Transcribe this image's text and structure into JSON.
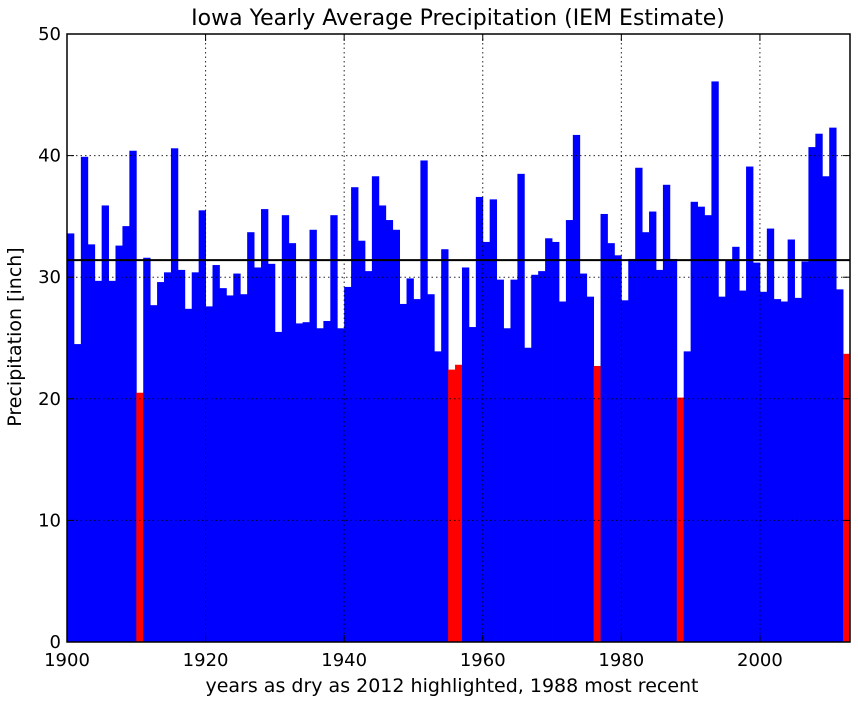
{
  "chart_data": {
    "type": "bar",
    "title": "Iowa Yearly Average Precipitation (IEM Estimate)",
    "xlabel": "years as dry as 2012 highlighted, 1988 most recent",
    "ylabel": "Precipitation [inch]",
    "xlim": [
      1900,
      2013
    ],
    "ylim": [
      0,
      50
    ],
    "xticks": [
      1900,
      1920,
      1940,
      1960,
      1980,
      2000
    ],
    "yticks": [
      0,
      10,
      20,
      30,
      40,
      50
    ],
    "grid": true,
    "average_line": 31.4,
    "colors": {
      "normal": "#0000ff",
      "highlight": "#ff0000",
      "average_line": "#000000",
      "grid": "#000000"
    },
    "highlighted_years": [
      1910,
      1955,
      1956,
      1976,
      1988,
      2012
    ],
    "x": [
      1900,
      1901,
      1902,
      1903,
      1904,
      1905,
      1906,
      1907,
      1908,
      1909,
      1910,
      1911,
      1912,
      1913,
      1914,
      1915,
      1916,
      1917,
      1918,
      1919,
      1920,
      1921,
      1922,
      1923,
      1924,
      1925,
      1926,
      1927,
      1928,
      1929,
      1930,
      1931,
      1932,
      1933,
      1934,
      1935,
      1936,
      1937,
      1938,
      1939,
      1940,
      1941,
      1942,
      1943,
      1944,
      1945,
      1946,
      1947,
      1948,
      1949,
      1950,
      1951,
      1952,
      1953,
      1954,
      1955,
      1956,
      1957,
      1958,
      1959,
      1960,
      1961,
      1962,
      1963,
      1964,
      1965,
      1966,
      1967,
      1968,
      1969,
      1970,
      1971,
      1972,
      1973,
      1974,
      1975,
      1976,
      1977,
      1978,
      1979,
      1980,
      1981,
      1982,
      1983,
      1984,
      1985,
      1986,
      1987,
      1988,
      1989,
      1990,
      1991,
      1992,
      1993,
      1994,
      1995,
      1996,
      1997,
      1998,
      1999,
      2000,
      2001,
      2002,
      2003,
      2004,
      2005,
      2006,
      2007,
      2008,
      2009,
      2010,
      2011,
      2012
    ],
    "values": [
      33.6,
      24.5,
      39.9,
      32.7,
      29.7,
      35.9,
      29.7,
      32.6,
      34.2,
      40.4,
      20.5,
      31.6,
      27.7,
      29.6,
      30.4,
      40.6,
      30.6,
      27.4,
      30.4,
      35.5,
      27.6,
      31.0,
      29.1,
      28.5,
      30.3,
      28.6,
      33.7,
      30.8,
      35.6,
      31.1,
      25.5,
      35.1,
      32.8,
      26.2,
      26.3,
      33.9,
      25.8,
      26.4,
      35.1,
      25.8,
      29.2,
      37.4,
      33.0,
      30.5,
      38.3,
      35.9,
      34.7,
      33.9,
      27.8,
      29.9,
      28.2,
      39.6,
      28.6,
      23.9,
      32.3,
      22.4,
      22.8,
      30.8,
      25.9,
      36.6,
      32.9,
      36.4,
      29.8,
      25.8,
      29.8,
      38.5,
      24.2,
      30.2,
      30.5,
      33.2,
      32.9,
      28.0,
      34.7,
      41.7,
      30.3,
      28.4,
      22.7,
      35.2,
      32.8,
      31.8,
      28.1,
      31.5,
      39.0,
      33.7,
      35.4,
      30.6,
      37.6,
      31.5,
      20.1,
      23.9,
      36.2,
      35.8,
      35.1,
      46.1,
      28.4,
      31.4,
      32.5,
      28.9,
      39.1,
      31.2,
      28.8,
      34.0,
      28.2,
      28.0,
      33.1,
      28.3,
      31.3,
      40.7,
      41.8,
      38.3,
      42.3,
      29.0,
      23.7
    ]
  }
}
